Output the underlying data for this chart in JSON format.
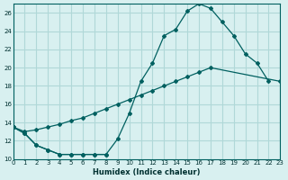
{
  "xlabel": "Humidex (Indice chaleur)",
  "bg_color": "#d8f0f0",
  "grid_color": "#b0d8d8",
  "line_color": "#006060",
  "xlim": [
    0,
    23
  ],
  "ylim": [
    10,
    27
  ],
  "xticks": [
    0,
    1,
    2,
    3,
    4,
    5,
    6,
    7,
    8,
    9,
    10,
    11,
    12,
    13,
    14,
    15,
    16,
    17,
    18,
    19,
    20,
    21,
    22,
    23
  ],
  "yticks": [
    10,
    12,
    14,
    16,
    18,
    20,
    22,
    24,
    26
  ],
  "series": [
    {
      "x": [
        0,
        1,
        2,
        3,
        4,
        5,
        6,
        7,
        8,
        9,
        10,
        11,
        12,
        13,
        14,
        15,
        16,
        17,
        18,
        19,
        20,
        21,
        22
      ],
      "y": [
        13.5,
        12.8,
        11.5,
        11.0,
        10.5,
        10.5,
        10.5,
        10.5,
        10.5,
        12.2,
        15.0,
        18.5,
        20.5,
        23.5,
        24.2,
        26.2,
        27.0,
        26.5,
        25.0,
        23.5,
        21.5,
        20.5,
        18.5
      ]
    },
    {
      "x": [
        0,
        1,
        2,
        3,
        4,
        5,
        6,
        7,
        8
      ],
      "y": [
        13.5,
        12.8,
        11.5,
        11.0,
        10.5,
        10.5,
        10.5,
        10.5,
        10.5
      ]
    },
    {
      "x": [
        0,
        1,
        2,
        3,
        4,
        5,
        6,
        7,
        8,
        9,
        10,
        11,
        12,
        13,
        14,
        15,
        16,
        17,
        23
      ],
      "y": [
        13.5,
        13.0,
        13.2,
        13.5,
        13.8,
        14.2,
        14.5,
        15.0,
        15.5,
        16.0,
        16.5,
        17.0,
        17.5,
        18.0,
        18.5,
        19.0,
        19.5,
        20.0,
        18.5
      ]
    }
  ]
}
